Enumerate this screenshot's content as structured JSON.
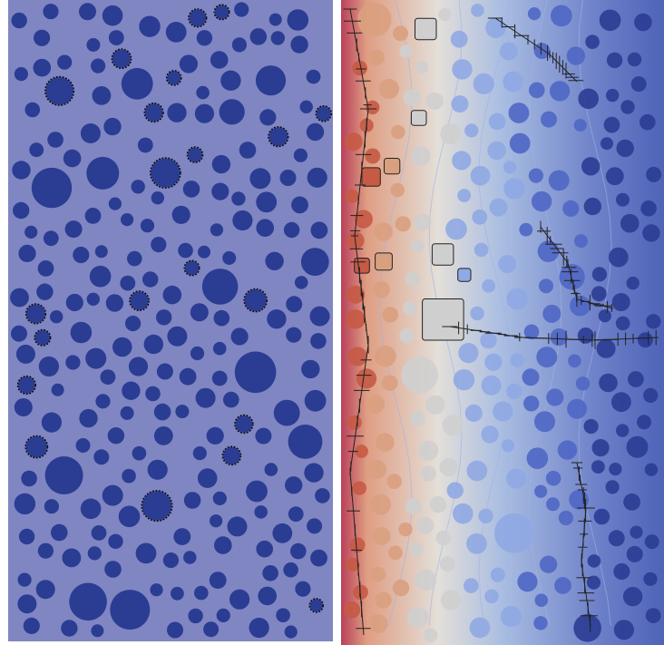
{
  "panels": [
    {
      "name": "left-panel",
      "description_visible": false,
      "background_color": "#7f86c2",
      "inclusion_color": "#2b3c93",
      "crack_color": "#111111"
    },
    {
      "name": "right-panel",
      "background_gradient_colors": [
        "#b9405a",
        "#df9e83",
        "#e3dfd9",
        "#a9bde2",
        "#6c7fc8",
        "#4f63b8"
      ],
      "inclusion_colors": [
        "#c55a45",
        "#d9a07f",
        "#cfcfcf",
        "#90a8e3",
        "#4f67c4",
        "#2b3c93"
      ],
      "crack_color": "#222222"
    }
  ],
  "colors": {
    "divider": "#ffffff",
    "left_bg": "#7f86c2",
    "left_inclusion": "#2b3c93"
  }
}
